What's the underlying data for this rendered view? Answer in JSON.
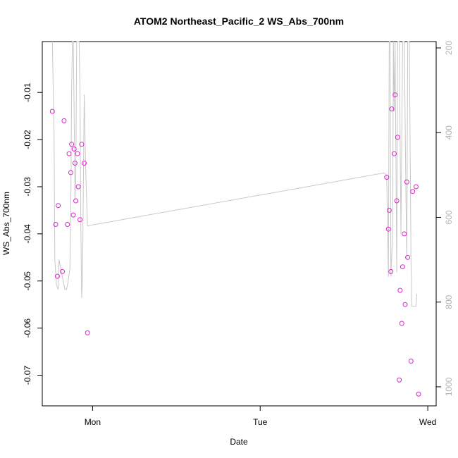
{
  "chart_data": {
    "type": "scatter",
    "title": "ATOM2 Northeast_Pacific_2 WS_Abs_700nm",
    "xlabel": "Date",
    "ylabel": "WS_Abs_700nm",
    "x_ticks": [
      "Mon",
      "Tue",
      "Wed"
    ],
    "x_tick_values": [
      1.0,
      2.0,
      3.0
    ],
    "xlim": [
      0.7,
      3.05
    ],
    "ylim": [
      -0.0765,
      0.0008
    ],
    "y_ticks": [
      -0.07,
      -0.06,
      -0.05,
      -0.04,
      -0.03,
      -0.02,
      -0.01
    ],
    "y_tick_labels": [
      "-0.07",
      "-0.06",
      "-0.05",
      "-0.04",
      "-0.03",
      "-0.02",
      "-0.01"
    ],
    "y2_ticks": [
      200,
      400,
      600,
      800,
      1000
    ],
    "y2_tick_labels": [
      "200",
      "400",
      "600",
      "800",
      "1000"
    ],
    "y2lim": [
      1045,
      185
    ],
    "grid": false,
    "point_color": "#e020d0",
    "depth_color": "#c8c8c8",
    "series": [
      {
        "points": [
          [
            0.76,
            -0.014
          ],
          [
            0.78,
            -0.038
          ],
          [
            0.79,
            -0.049
          ],
          [
            0.795,
            -0.034
          ],
          [
            0.82,
            -0.048
          ],
          [
            0.83,
            -0.016
          ],
          [
            0.85,
            -0.038
          ],
          [
            0.86,
            -0.023
          ],
          [
            0.87,
            -0.027
          ],
          [
            0.875,
            -0.021
          ],
          [
            0.885,
            -0.036
          ],
          [
            0.89,
            -0.022
          ],
          [
            0.895,
            -0.025
          ],
          [
            0.9,
            -0.033
          ],
          [
            0.91,
            -0.023
          ],
          [
            0.915,
            -0.03
          ],
          [
            0.925,
            -0.037
          ],
          [
            0.935,
            -0.021
          ],
          [
            0.95,
            -0.025
          ],
          [
            0.97,
            -0.061
          ],
          [
            2.755,
            -0.028
          ],
          [
            2.765,
            -0.039
          ],
          [
            2.77,
            -0.035
          ],
          [
            2.78,
            -0.048
          ],
          [
            2.785,
            -0.0135
          ],
          [
            2.8,
            -0.023
          ],
          [
            2.805,
            -0.0105
          ],
          [
            2.815,
            -0.033
          ],
          [
            2.82,
            -0.0195
          ],
          [
            2.83,
            -0.071
          ],
          [
            2.835,
            -0.052
          ],
          [
            2.845,
            -0.059
          ],
          [
            2.85,
            -0.047
          ],
          [
            2.86,
            -0.04
          ],
          [
            2.865,
            -0.055
          ],
          [
            2.875,
            -0.029
          ],
          [
            2.88,
            -0.045
          ],
          [
            2.9,
            -0.067
          ],
          [
            2.91,
            -0.031
          ],
          [
            2.93,
            -0.03
          ],
          [
            2.945,
            -0.074
          ]
        ]
      }
    ],
    "depth_series": {
      "points": [
        [
          0.76,
          185
        ],
        [
          0.77,
          400
        ],
        [
          0.775,
          700
        ],
        [
          0.785,
          760
        ],
        [
          0.795,
          770
        ],
        [
          0.8,
          700
        ],
        [
          0.81,
          720
        ],
        [
          0.825,
          750
        ],
        [
          0.835,
          770
        ],
        [
          0.845,
          770
        ],
        [
          0.855,
          750
        ],
        [
          0.865,
          720
        ],
        [
          0.87,
          600
        ],
        [
          0.875,
          300
        ],
        [
          0.88,
          185
        ],
        [
          0.885,
          185
        ],
        [
          0.89,
          350
        ],
        [
          0.895,
          560
        ],
        [
          0.9,
          500
        ],
        [
          0.905,
          185
        ],
        [
          0.91,
          185
        ],
        [
          0.92,
          185
        ],
        [
          0.925,
          300
        ],
        [
          0.93,
          620
        ],
        [
          0.935,
          790
        ],
        [
          0.94,
          740
        ],
        [
          0.95,
          310
        ],
        [
          0.96,
          500
        ],
        [
          0.97,
          620
        ],
        [
          2.74,
          495
        ],
        [
          2.755,
          500
        ],
        [
          2.765,
          740
        ],
        [
          2.77,
          185
        ],
        [
          2.775,
          185
        ],
        [
          2.78,
          740
        ],
        [
          2.79,
          640
        ],
        [
          2.795,
          185
        ],
        [
          2.8,
          350
        ],
        [
          2.805,
          185
        ],
        [
          2.815,
          730
        ],
        [
          2.82,
          185
        ],
        [
          2.83,
          185
        ],
        [
          2.84,
          640
        ],
        [
          2.85,
          185
        ],
        [
          2.86,
          185
        ],
        [
          2.87,
          560
        ],
        [
          2.875,
          700
        ],
        [
          2.88,
          185
        ],
        [
          2.89,
          185
        ],
        [
          2.9,
          700
        ],
        [
          2.905,
          810
        ],
        [
          2.93,
          810
        ],
        [
          2.935,
          780
        ]
      ]
    }
  }
}
